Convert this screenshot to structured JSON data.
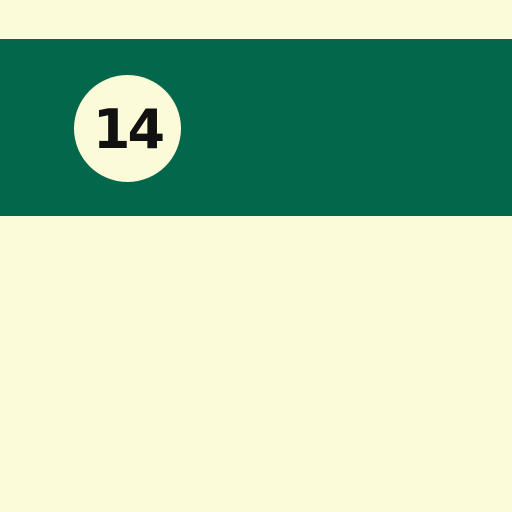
{
  "colors": {
    "background": "#fcfbd9",
    "band": "#03674b",
    "badge_fill": "#fcfbd9",
    "badge_text": "#111111"
  },
  "badge": {
    "number": "14"
  }
}
